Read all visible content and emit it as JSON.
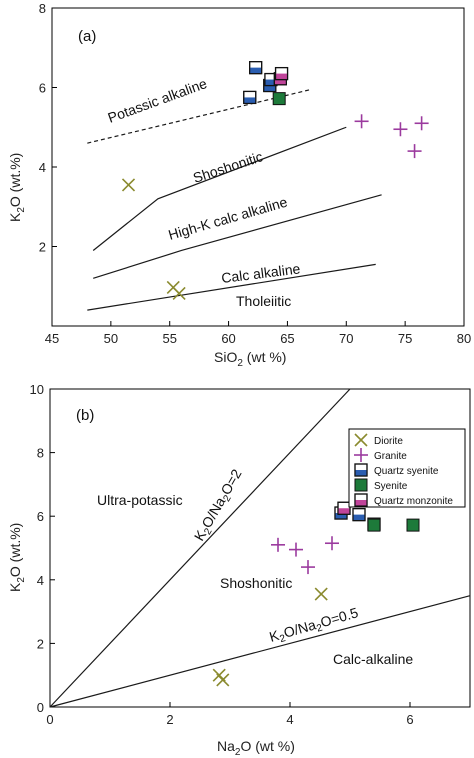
{
  "colors": {
    "diorite": "#8a8a2e",
    "granite": "#9b3a9e",
    "quartz_syenite": "#2a5db0",
    "syenite": "#1d7a3a",
    "quartz_monzonite": "#c0449a",
    "line": "#1a1a1a"
  },
  "legend": {
    "placement": "top-right of panel (b)",
    "entries": [
      {
        "key": "diorite",
        "label": "Diorite",
        "marker": "x"
      },
      {
        "key": "granite",
        "label": "Granite",
        "marker": "plus"
      },
      {
        "key": "quartz_syenite",
        "label": "Quartz syenite",
        "marker": "square-half-blue"
      },
      {
        "key": "syenite",
        "label": "Syenite",
        "marker": "square-green"
      },
      {
        "key": "quartz_monzonite",
        "label": "Quartz monzonite",
        "marker": "square-half-pink"
      }
    ]
  },
  "chart_data": [
    {
      "type": "scatter",
      "panel_label": "(a)",
      "xlabel_main": "SiO",
      "xlabel_sub": "2",
      "xlabel_rest": " (wt %)",
      "ylabel_main": "K",
      "ylabel_sub": "2",
      "ylabel_rest": "O (wt.%)",
      "xlim": [
        45,
        80
      ],
      "ylim": [
        0,
        8
      ],
      "xticks": [
        45,
        50,
        55,
        60,
        65,
        70,
        75,
        80
      ],
      "yticks": [
        2,
        4,
        6,
        8
      ],
      "boundaries": [
        {
          "name": "potassic",
          "dashed": true,
          "points": [
            [
              48,
              4.6
            ],
            [
              67,
              5.95
            ]
          ]
        },
        {
          "name": "shoshonitic",
          "dashed": false,
          "points": [
            [
              48.5,
              1.9
            ],
            [
              54,
              3.2
            ],
            [
              70,
              5.0
            ]
          ]
        },
        {
          "name": "highk",
          "dashed": false,
          "points": [
            [
              48.5,
              1.2
            ],
            [
              56,
              1.9
            ],
            [
              73,
              3.3
            ]
          ]
        },
        {
          "name": "calc",
          "dashed": false,
          "points": [
            [
              48,
              0.4
            ],
            [
              72.5,
              1.55
            ]
          ]
        }
      ],
      "field_labels": {
        "potassic": "Potassic alkaline",
        "shoshonitic": "Shoshonitic",
        "highk": "High-K calc alkaline",
        "calc": "Calc alkaline",
        "tholeiitic": "Tholeiitic"
      },
      "series": [
        {
          "key": "diorite",
          "name": "Diorite",
          "x": [
            51.5,
            55.3,
            55.8
          ],
          "y": [
            3.55,
            0.97,
            0.82
          ]
        },
        {
          "key": "granite",
          "name": "Granite",
          "x": [
            71.3,
            74.6,
            75.8,
            76.4
          ],
          "y": [
            5.15,
            4.95,
            4.4,
            5.1
          ]
        },
        {
          "key": "quartz_syenite",
          "name": "Quartz syenite",
          "x": [
            61.8,
            62.3,
            63.5,
            63.6
          ],
          "y": [
            5.75,
            6.5,
            6.05,
            6.2
          ]
        },
        {
          "key": "syenite",
          "name": "Syenite",
          "x": [
            64.3
          ],
          "y": [
            5.72
          ]
        },
        {
          "key": "quartz_monzonite",
          "name": "Quartz monzonite",
          "x": [
            64.4,
            64.5
          ],
          "y": [
            6.22,
            6.35
          ]
        }
      ]
    },
    {
      "type": "scatter",
      "panel_label": "(b)",
      "xlabel_main": "Na",
      "xlabel_sub": "2",
      "xlabel_rest": "O (wt %)",
      "ylabel_main": "K",
      "ylabel_sub": "2",
      "ylabel_rest": "O (wt.%)",
      "xlim": [
        0,
        7
      ],
      "ylim": [
        0,
        10
      ],
      "xticks": [
        0,
        2,
        4,
        6
      ],
      "yticks": [
        0,
        2,
        4,
        6,
        8,
        10
      ],
      "boundaries": [
        {
          "name": "ratio2",
          "dashed": false,
          "points": [
            [
              0,
              0
            ],
            [
              5.0,
              10
            ]
          ]
        },
        {
          "name": "ratio05",
          "dashed": false,
          "points": [
            [
              0,
              0
            ],
            [
              7,
              3.5
            ]
          ]
        }
      ],
      "field_labels": {
        "ultra": "Ultra-potassic",
        "ratio2": "K2O/Na2O=2",
        "shoshonitic": "Shoshonitic",
        "ratio05": "K2O/Na2O=0.5",
        "calcalk": "Calc-alkaline"
      },
      "series": [
        {
          "key": "diorite",
          "name": "Diorite",
          "x": [
            2.82,
            2.88,
            4.52
          ],
          "y": [
            1.0,
            0.85,
            3.55
          ]
        },
        {
          "key": "granite",
          "name": "Granite",
          "x": [
            3.8,
            4.1,
            4.3,
            4.7
          ],
          "y": [
            5.1,
            4.95,
            4.4,
            5.15
          ]
        },
        {
          "key": "quartz_syenite",
          "name": "Quartz syenite",
          "x": [
            4.85,
            5.15,
            5.35,
            5.4
          ],
          "y": [
            6.1,
            6.05,
            6.5,
            5.75
          ]
        },
        {
          "key": "syenite",
          "name": "Syenite",
          "x": [
            5.4,
            6.05
          ],
          "y": [
            5.72,
            5.72
          ]
        },
        {
          "key": "quartz_monzonite",
          "name": "Quartz monzonite",
          "x": [
            4.9
          ],
          "y": [
            6.25
          ]
        }
      ]
    }
  ]
}
